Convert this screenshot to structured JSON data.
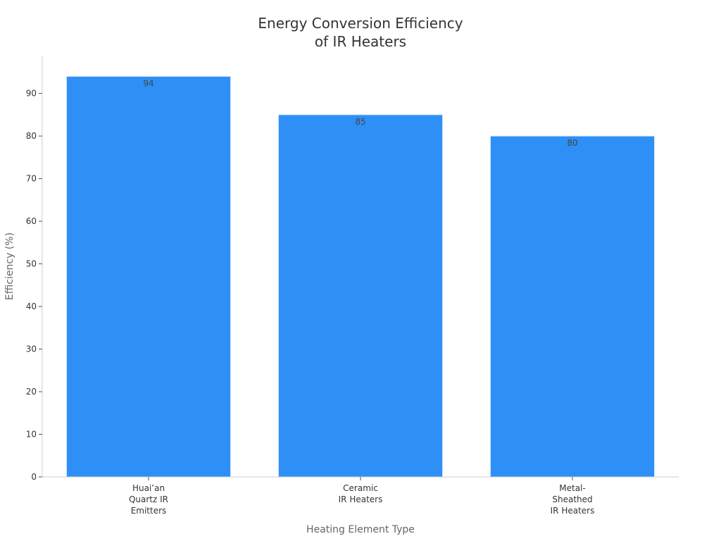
{
  "chart_data": {
    "type": "bar",
    "title_lines": [
      "Energy Conversion Efficiency",
      "of IR Heaters"
    ],
    "xlabel": "Heating Element Type",
    "ylabel": "Efficiency (%)",
    "categories": [
      [
        "Huai’an",
        "Quartz IR",
        "Emitters"
      ],
      [
        "Ceramic",
        "IR Heaters"
      ],
      [
        "Metal-",
        "Sheathed",
        "IR Heaters"
      ]
    ],
    "values": [
      94,
      85,
      80
    ],
    "data_labels": [
      "94",
      "85",
      "80"
    ],
    "yticks": [
      0,
      10,
      20,
      30,
      40,
      50,
      60,
      70,
      80,
      90
    ],
    "ylim": [
      0,
      98.7
    ],
    "grid": false,
    "bar_color": "#2e90f7"
  }
}
